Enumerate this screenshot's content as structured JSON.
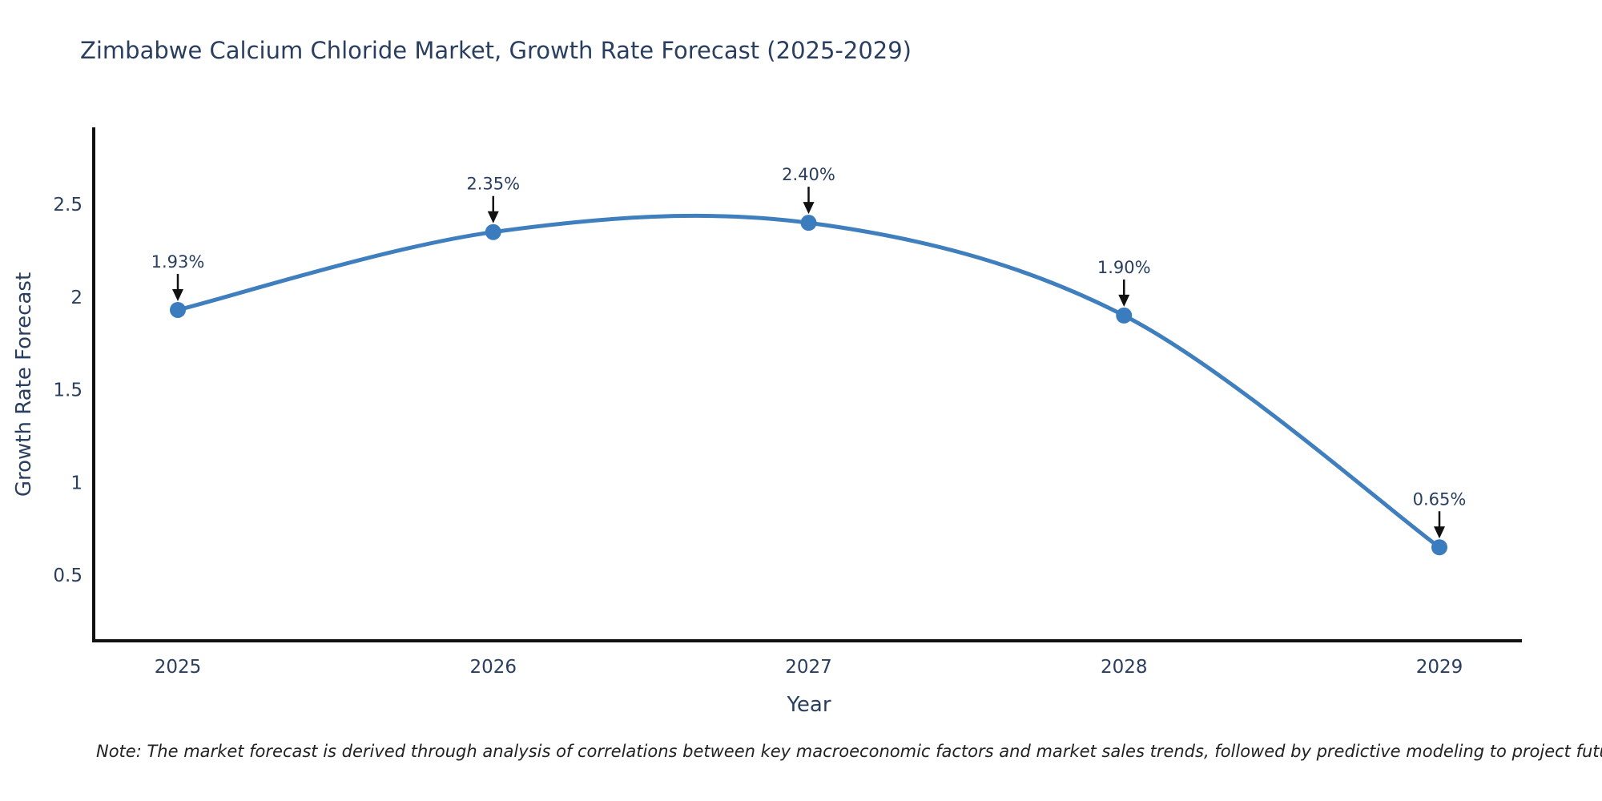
{
  "title": "Zimbabwe Calcium Chloride Market, Growth Rate Forecast (2025-2029)",
  "note": "Note: The market forecast is derived through analysis of correlations between key macroeconomic factors and market sales trends, followed by predictive modeling to project future sales",
  "chart_data": {
    "type": "line",
    "title": "Zimbabwe Calcium Chloride Market, Growth Rate Forecast (2025-2029)",
    "x": [
      2025,
      2026,
      2027,
      2028,
      2029
    ],
    "series": [
      {
        "name": "Growth Rate Forecast",
        "values": [
          1.93,
          2.35,
          2.4,
          1.9,
          0.65
        ]
      }
    ],
    "point_labels": [
      "1.93%",
      "2.35%",
      "2.40%",
      "1.90%",
      "0.65%"
    ],
    "xlabel": "Year",
    "ylabel": "Growth Rate Forecast",
    "yticks": [
      0.5,
      1,
      1.5,
      2,
      2.5
    ],
    "ylim": [
      0.15,
      2.92
    ],
    "xlim": [
      2024.73,
      2029.26
    ],
    "grid": false,
    "legend": "none",
    "line_shape": "spline",
    "colors": {
      "line": "#3f7fbe",
      "marker": "#3a7cbd",
      "arrow": "#111111",
      "axis": "#111111",
      "text": "#2a3f5f",
      "note_text": "#222222",
      "background": "#ffffff"
    }
  }
}
